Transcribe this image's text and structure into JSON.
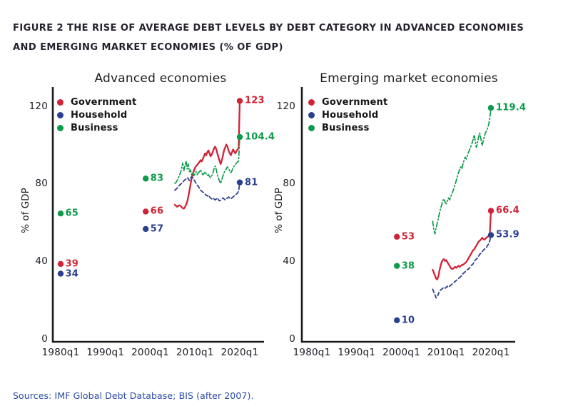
{
  "figure": {
    "title_line1": "FIGURE 2 THE RISE OF AVERAGE DEBT LEVELS BY DEBT CATEGORY IN ADVANCED ECONOMIES",
    "title_line2": "AND EMERGING MARKET ECONOMIES (% OF GDP)",
    "source": "Sources: IMF Global Debt Database; BIS (after 2007)."
  },
  "colors": {
    "government": "#cf2336",
    "household": "#2a3f90",
    "business": "#0d9a4b",
    "axis": "#1a1a1a",
    "title_text": "#27222f",
    "source_text": "#2b4ba6",
    "tick_text": "#201d26"
  },
  "chart_data": [
    {
      "type": "line",
      "key": "advanced",
      "title": "Advanced economies",
      "ylabel": "% of GDP",
      "ylim": [
        0,
        130
      ],
      "yticks": [
        0,
        40,
        80,
        120
      ],
      "xticks": [
        "1980q1",
        "1990q1",
        "2000q1",
        "2010q1",
        "2020q1"
      ],
      "xtick_years": [
        1980,
        1990,
        2000,
        2010,
        2020
      ],
      "grid": false,
      "legend_position": "upper-left",
      "legend": [
        {
          "label": "Government",
          "color_key": "government"
        },
        {
          "label": "Household",
          "color_key": "household"
        },
        {
          "label": "Business",
          "color_key": "business"
        }
      ],
      "isolated_points": [
        {
          "series": "Business",
          "year": 1980.0,
          "value": 65,
          "label": "65",
          "color_key": "business"
        },
        {
          "series": "Government",
          "year": 1980.0,
          "value": 39,
          "label": "39",
          "color_key": "government"
        },
        {
          "series": "Household",
          "year": 1980.0,
          "value": 34,
          "label": "34",
          "color_key": "household"
        },
        {
          "series": "Business",
          "year": 1999.0,
          "value": 83,
          "label": "83",
          "color_key": "business"
        },
        {
          "series": "Government",
          "year": 1999.0,
          "value": 66,
          "label": "66",
          "color_key": "government"
        },
        {
          "series": "Household",
          "year": 1999.0,
          "value": 57,
          "label": "57",
          "color_key": "household"
        }
      ],
      "series": [
        {
          "name": "Government",
          "color_key": "government",
          "style": "solid",
          "start_year": 2005.5,
          "step_years": 0.25,
          "end_label": "123",
          "values": [
            69.5,
            69.0,
            68.5,
            68.8,
            69.2,
            69.0,
            68.3,
            67.8,
            67.5,
            68.2,
            69.5,
            71.0,
            73.5,
            76.5,
            80.0,
            83.0,
            85.5,
            87.0,
            88.5,
            89.5,
            90.0,
            90.8,
            91.5,
            92.5,
            91.8,
            93.0,
            94.5,
            96.0,
            95.0,
            96.5,
            97.5,
            96.0,
            94.5,
            95.5,
            97.0,
            98.5,
            99.5,
            98.0,
            96.0,
            94.0,
            92.0,
            90.5,
            92.5,
            95.0,
            97.5,
            99.0,
            100.5,
            99.5,
            97.5,
            96.0,
            95.0,
            96.5,
            98.0,
            97.0,
            96.0,
            97.0,
            98.0,
            98.5,
            123.0
          ]
        },
        {
          "name": "Household",
          "color_key": "household",
          "style": "dashed",
          "start_year": 2005.5,
          "step_years": 0.25,
          "end_label": "81",
          "values": [
            77.0,
            77.5,
            78.0,
            78.8,
            79.5,
            80.0,
            80.5,
            81.0,
            81.8,
            82.3,
            82.8,
            83.5,
            83.0,
            82.0,
            83.0,
            84.0,
            83.5,
            82.5,
            81.5,
            80.5,
            79.5,
            79.0,
            78.0,
            77.0,
            76.5,
            76.0,
            75.5,
            75.0,
            74.5,
            74.0,
            74.5,
            73.5,
            73.0,
            72.5,
            73.0,
            72.5,
            72.0,
            72.5,
            73.0,
            72.0,
            71.5,
            72.0,
            72.5,
            73.0,
            72.5,
            72.0,
            72.5,
            73.0,
            73.5,
            73.0,
            72.5,
            73.0,
            73.5,
            74.0,
            74.5,
            75.0,
            75.5,
            76.5,
            81.0
          ]
        },
        {
          "name": "Business",
          "color_key": "business",
          "style": "dashdot",
          "start_year": 2005.5,
          "step_years": 0.25,
          "end_label": "104.4",
          "values": [
            80.5,
            81.0,
            82.0,
            83.0,
            84.5,
            86.0,
            88.0,
            91.0,
            87.0,
            89.5,
            92.0,
            88.0,
            90.5,
            86.5,
            87.5,
            85.0,
            86.0,
            84.5,
            85.5,
            86.5,
            85.0,
            86.0,
            86.5,
            87.5,
            86.0,
            85.0,
            85.5,
            86.5,
            85.5,
            84.5,
            85.0,
            84.0,
            83.5,
            84.5,
            86.0,
            88.0,
            89.5,
            87.5,
            85.0,
            83.0,
            81.5,
            80.5,
            82.5,
            84.5,
            86.0,
            87.0,
            88.0,
            89.0,
            88.0,
            87.0,
            86.0,
            87.0,
            88.5,
            89.5,
            90.0,
            91.0,
            91.5,
            92.0,
            104.4
          ]
        }
      ]
    },
    {
      "type": "line",
      "key": "emerging",
      "title": "Emerging market economies",
      "ylabel": "% of GDP",
      "ylim": [
        0,
        130
      ],
      "yticks": [
        0,
        40,
        80,
        120
      ],
      "xticks": [
        "1980q1",
        "1990q1",
        "2000q1",
        "2010q1",
        "2020q1"
      ],
      "xtick_years": [
        1980,
        1990,
        2000,
        2010,
        2020
      ],
      "grid": false,
      "legend_position": "upper-left",
      "legend": [
        {
          "label": "Government",
          "color_key": "government"
        },
        {
          "label": "Household",
          "color_key": "household"
        },
        {
          "label": "Business",
          "color_key": "business"
        }
      ],
      "isolated_points": [
        {
          "series": "Government",
          "year": 1999.0,
          "value": 53,
          "label": "53",
          "color_key": "government"
        },
        {
          "series": "Business",
          "year": 1999.0,
          "value": 38,
          "label": "38",
          "color_key": "business"
        },
        {
          "series": "Household",
          "year": 1999.0,
          "value": 10,
          "label": "10",
          "color_key": "household"
        }
      ],
      "series": [
        {
          "name": "Government",
          "color_key": "government",
          "style": "solid",
          "start_year": 2007.0,
          "step_years": 0.25,
          "end_label": "66.4",
          "values": [
            36.0,
            34.5,
            33.0,
            31.5,
            31.0,
            32.5,
            35.5,
            38.0,
            40.0,
            41.0,
            41.5,
            40.5,
            41.0,
            40.0,
            39.0,
            38.0,
            37.0,
            36.5,
            36.5,
            37.0,
            37.5,
            37.0,
            37.5,
            38.0,
            37.5,
            38.0,
            38.5,
            38.5,
            39.0,
            39.5,
            40.0,
            41.0,
            42.0,
            43.0,
            44.0,
            45.0,
            46.0,
            46.5,
            47.5,
            48.5,
            49.5,
            50.5,
            51.0,
            51.5,
            52.5,
            52.0,
            51.5,
            52.0,
            52.5,
            53.0,
            53.5,
            54.5,
            66.4
          ]
        },
        {
          "name": "Household",
          "color_key": "household",
          "style": "dashed",
          "start_year": 2007.0,
          "step_years": 0.25,
          "end_label": "53.9",
          "values": [
            26.0,
            24.5,
            23.0,
            21.5,
            22.0,
            23.5,
            25.0,
            25.5,
            26.0,
            26.5,
            27.0,
            26.5,
            27.0,
            27.5,
            27.0,
            27.5,
            28.0,
            28.5,
            29.0,
            29.5,
            30.0,
            30.5,
            31.0,
            31.5,
            32.0,
            32.5,
            33.0,
            34.0,
            34.5,
            35.0,
            35.5,
            36.0,
            36.5,
            37.0,
            38.0,
            38.5,
            39.0,
            40.0,
            41.0,
            41.5,
            42.0,
            43.0,
            44.0,
            44.5,
            45.0,
            46.0,
            46.5,
            47.0,
            47.5,
            48.5,
            49.5,
            51.0,
            53.9
          ]
        },
        {
          "name": "Business",
          "color_key": "business",
          "style": "dashdot",
          "start_year": 2007.0,
          "step_years": 0.25,
          "end_label": "119.4",
          "values": [
            61.0,
            56.5,
            54.5,
            57.5,
            60.0,
            62.5,
            65.0,
            67.5,
            69.5,
            71.5,
            72.5,
            71.0,
            70.0,
            71.5,
            73.0,
            72.0,
            73.5,
            75.0,
            76.5,
            78.0,
            80.0,
            82.0,
            84.0,
            86.0,
            87.5,
            89.0,
            88.0,
            90.5,
            92.5,
            94.0,
            93.0,
            95.0,
            96.5,
            98.0,
            99.5,
            101.0,
            103.0,
            105.5,
            102.5,
            99.0,
            101.5,
            104.5,
            106.5,
            103.5,
            100.0,
            102.0,
            104.5,
            106.5,
            107.5,
            109.0,
            111.0,
            114.0,
            119.4
          ]
        }
      ]
    }
  ]
}
